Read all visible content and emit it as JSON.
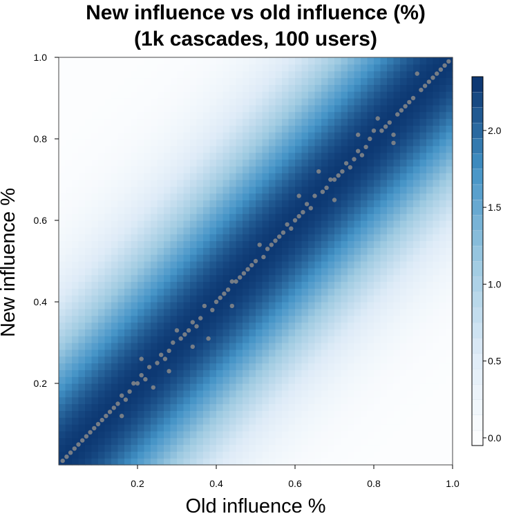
{
  "chart_data": {
    "type": "heatmap",
    "title_lines": [
      "New influence vs old influence (%)",
      "(1k cascades, 100 users)"
    ],
    "xlabel": "Old influence %",
    "ylabel": "New influence %",
    "xlim": [
      0.0,
      1.0
    ],
    "ylim": [
      0.0,
      1.0
    ],
    "x_ticks": [
      "0.2",
      "0.4",
      "0.6",
      "0.8",
      "1.0"
    ],
    "y_ticks": [
      "0.2",
      "0.4",
      "0.6",
      "0.8",
      "1.0"
    ],
    "colorbar": {
      "range": [
        -0.05,
        2.35
      ],
      "ticks": [
        "0.0",
        "0.5",
        "1.0",
        "1.5",
        "2.0"
      ],
      "colors": [
        "#ffffff",
        "#deebf7",
        "#9ecae1",
        "#4292c6",
        "#08306b"
      ]
    },
    "density_peak": 2.3,
    "density_spread": 0.17,
    "point_color": "#8a8a8a",
    "points": [
      [
        0.01,
        0.01
      ],
      [
        0.02,
        0.02
      ],
      [
        0.03,
        0.03
      ],
      [
        0.04,
        0.04
      ],
      [
        0.05,
        0.05
      ],
      [
        0.06,
        0.06
      ],
      [
        0.07,
        0.07
      ],
      [
        0.08,
        0.08
      ],
      [
        0.09,
        0.09
      ],
      [
        0.1,
        0.1
      ],
      [
        0.11,
        0.11
      ],
      [
        0.12,
        0.12
      ],
      [
        0.13,
        0.13
      ],
      [
        0.14,
        0.14
      ],
      [
        0.15,
        0.15
      ],
      [
        0.16,
        0.17
      ],
      [
        0.17,
        0.16
      ],
      [
        0.18,
        0.18
      ],
      [
        0.19,
        0.2
      ],
      [
        0.2,
        0.2
      ],
      [
        0.21,
        0.22
      ],
      [
        0.22,
        0.21
      ],
      [
        0.23,
        0.24
      ],
      [
        0.24,
        0.19
      ],
      [
        0.25,
        0.25
      ],
      [
        0.26,
        0.27
      ],
      [
        0.27,
        0.26
      ],
      [
        0.28,
        0.28
      ],
      [
        0.29,
        0.3
      ],
      [
        0.3,
        0.33
      ],
      [
        0.31,
        0.31
      ],
      [
        0.32,
        0.32
      ],
      [
        0.33,
        0.33
      ],
      [
        0.34,
        0.35
      ],
      [
        0.35,
        0.34
      ],
      [
        0.36,
        0.36
      ],
      [
        0.37,
        0.39
      ],
      [
        0.38,
        0.31
      ],
      [
        0.39,
        0.38
      ],
      [
        0.4,
        0.4
      ],
      [
        0.41,
        0.41
      ],
      [
        0.42,
        0.42
      ],
      [
        0.43,
        0.43
      ],
      [
        0.44,
        0.45
      ],
      [
        0.45,
        0.45
      ],
      [
        0.46,
        0.46
      ],
      [
        0.47,
        0.47
      ],
      [
        0.48,
        0.48
      ],
      [
        0.49,
        0.49
      ],
      [
        0.5,
        0.5
      ],
      [
        0.51,
        0.54
      ],
      [
        0.52,
        0.51
      ],
      [
        0.53,
        0.53
      ],
      [
        0.54,
        0.54
      ],
      [
        0.55,
        0.55
      ],
      [
        0.56,
        0.56
      ],
      [
        0.57,
        0.57
      ],
      [
        0.58,
        0.59
      ],
      [
        0.59,
        0.58
      ],
      [
        0.6,
        0.6
      ],
      [
        0.61,
        0.61
      ],
      [
        0.62,
        0.62
      ],
      [
        0.63,
        0.64
      ],
      [
        0.64,
        0.63
      ],
      [
        0.65,
        0.66
      ],
      [
        0.66,
        0.72
      ],
      [
        0.67,
        0.67
      ],
      [
        0.68,
        0.68
      ],
      [
        0.69,
        0.7
      ],
      [
        0.7,
        0.7
      ],
      [
        0.71,
        0.71
      ],
      [
        0.72,
        0.72
      ],
      [
        0.73,
        0.74
      ],
      [
        0.74,
        0.73
      ],
      [
        0.75,
        0.75
      ],
      [
        0.76,
        0.77
      ],
      [
        0.77,
        0.76
      ],
      [
        0.78,
        0.78
      ],
      [
        0.79,
        0.8
      ],
      [
        0.8,
        0.82
      ],
      [
        0.81,
        0.85
      ],
      [
        0.82,
        0.82
      ],
      [
        0.83,
        0.83
      ],
      [
        0.84,
        0.84
      ],
      [
        0.85,
        0.79
      ],
      [
        0.86,
        0.86
      ],
      [
        0.87,
        0.87
      ],
      [
        0.88,
        0.88
      ],
      [
        0.89,
        0.89
      ],
      [
        0.9,
        0.9
      ],
      [
        0.91,
        0.96
      ],
      [
        0.92,
        0.92
      ],
      [
        0.93,
        0.93
      ],
      [
        0.94,
        0.94
      ],
      [
        0.95,
        0.95
      ],
      [
        0.96,
        0.96
      ],
      [
        0.97,
        0.97
      ],
      [
        0.98,
        0.98
      ],
      [
        0.99,
        0.99
      ],
      [
        0.16,
        0.12
      ],
      [
        0.21,
        0.26
      ],
      [
        0.28,
        0.23
      ],
      [
        0.34,
        0.29
      ],
      [
        0.44,
        0.39
      ],
      [
        0.61,
        0.66
      ],
      [
        0.7,
        0.65
      ],
      [
        0.76,
        0.81
      ],
      [
        0.85,
        0.81
      ]
    ]
  }
}
